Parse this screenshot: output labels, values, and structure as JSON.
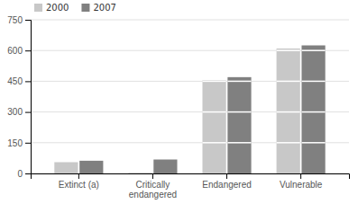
{
  "chart_data": {
    "type": "bar",
    "categories": [
      "Extinct (a)",
      "Critically\nendangered",
      "Endangered",
      "Vulnerable"
    ],
    "series": [
      {
        "name": "2000",
        "color": "#c8c8c8",
        "values": [
          55,
          3,
          455,
          610
        ]
      },
      {
        "name": "2007",
        "color": "#808080",
        "values": [
          62,
          68,
          470,
          625
        ]
      }
    ],
    "ylim": [
      0,
      750
    ],
    "yticks": [
      0,
      150,
      300,
      450,
      600,
      750
    ],
    "grid": true,
    "legend": "upper left"
  }
}
